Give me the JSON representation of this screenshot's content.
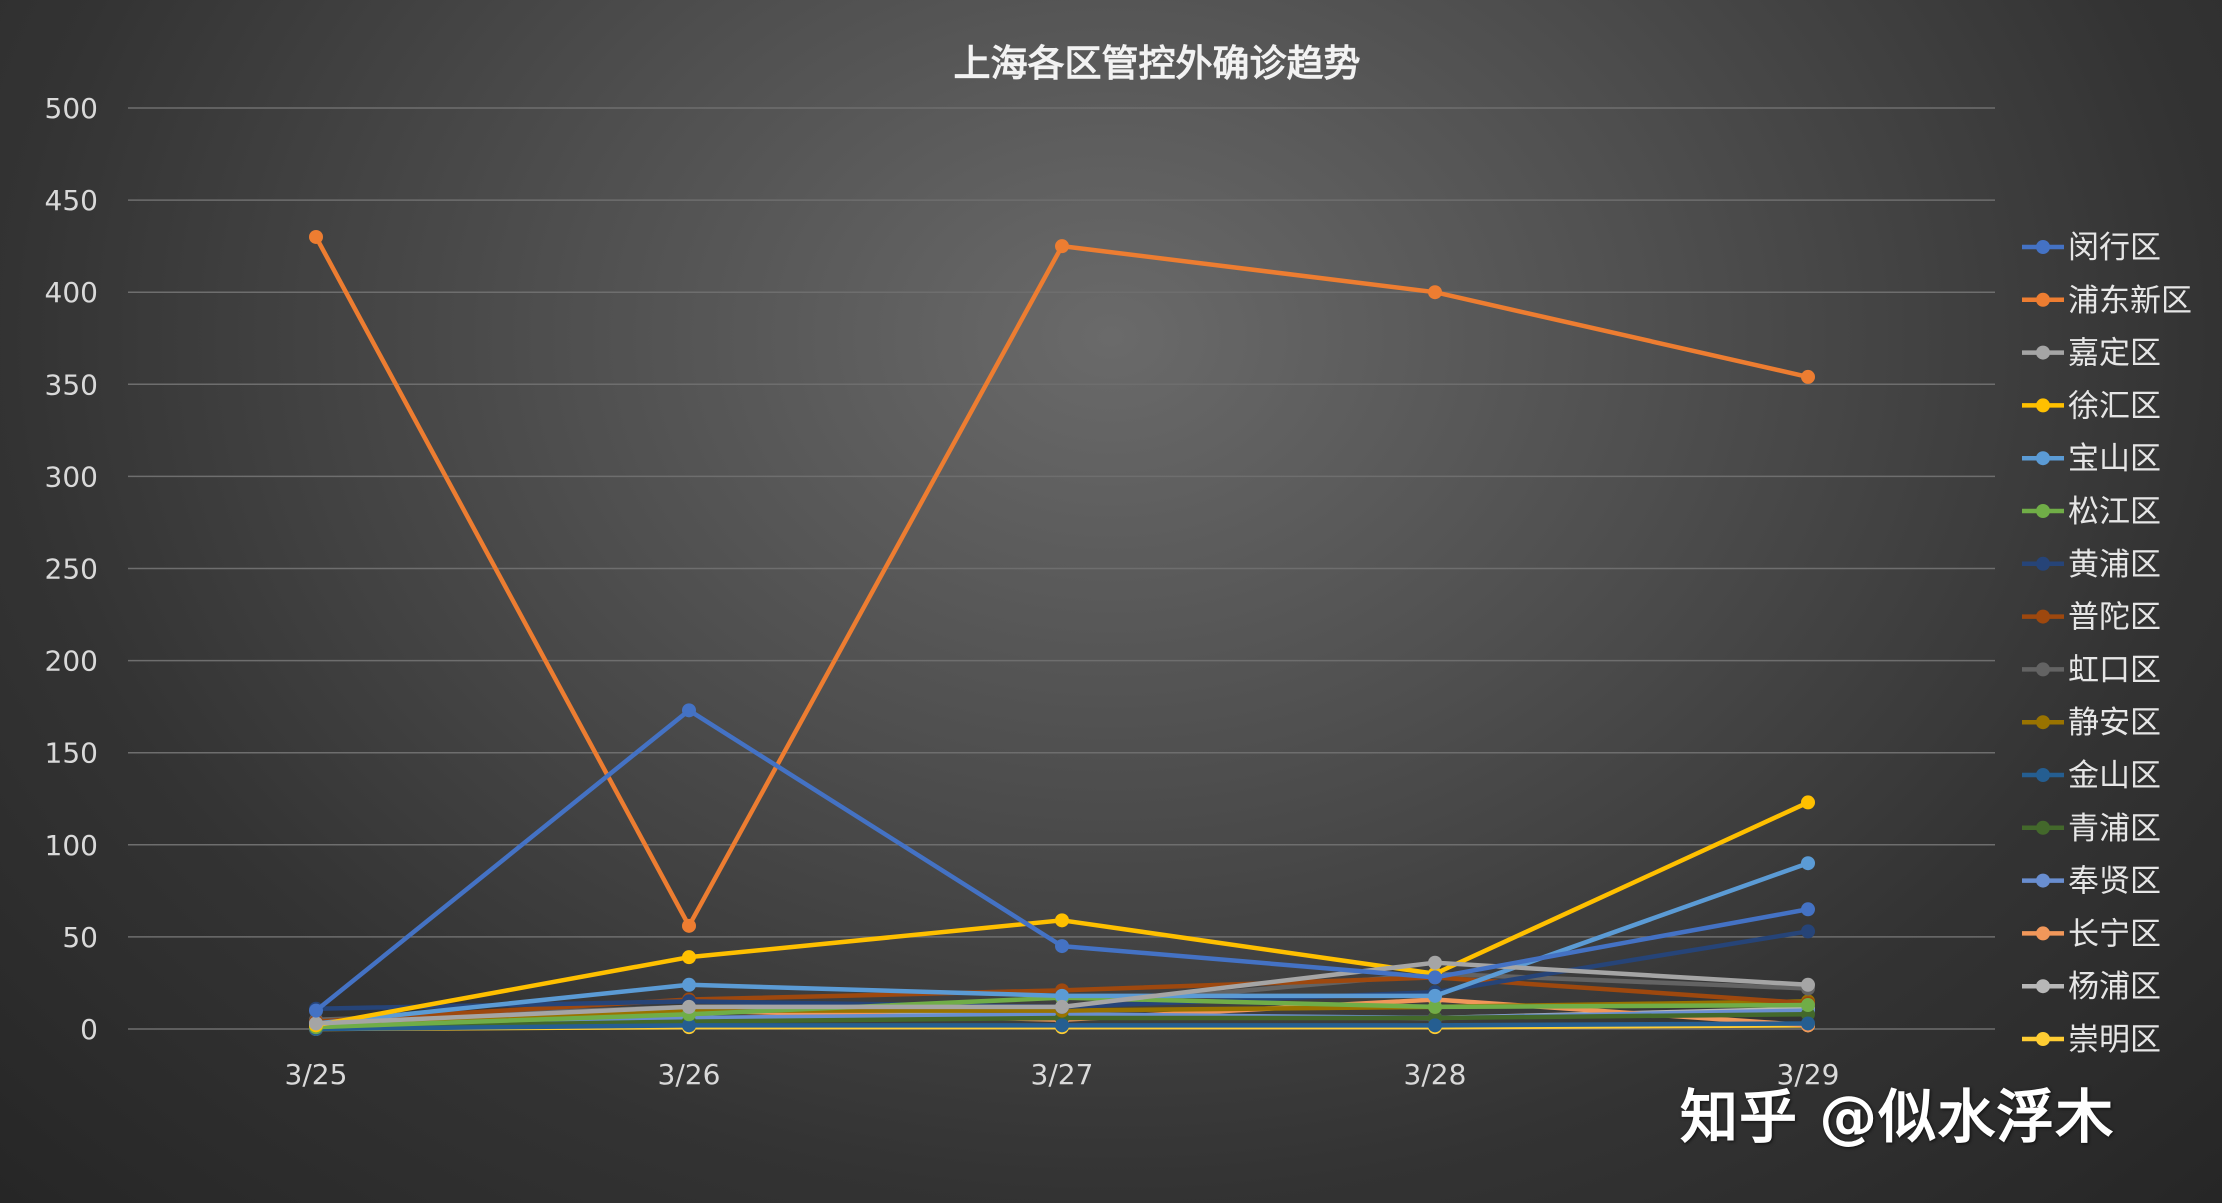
{
  "watermark": "知乎 @似水浮木",
  "chart_data": {
    "type": "line",
    "title": "上海各区管控外确诊趋势",
    "categories": [
      "3/25",
      "3/26",
      "3/27",
      "3/28",
      "3/29"
    ],
    "ylim": [
      0,
      500
    ],
    "yticks": [
      0,
      50,
      100,
      150,
      200,
      250,
      300,
      350,
      400,
      450,
      500
    ],
    "grid": true,
    "legend_position": "right",
    "series": [
      {
        "name": "闵行区",
        "color": "#4472C4",
        "values": [
          10,
          173,
          45,
          28,
          65
        ]
      },
      {
        "name": "浦东新区",
        "color": "#ED7D31",
        "values": [
          430,
          56,
          425,
          400,
          354
        ]
      },
      {
        "name": "嘉定区",
        "color": "#A5A5A5",
        "values": [
          3,
          12,
          12,
          36,
          24
        ]
      },
      {
        "name": "徐汇区",
        "color": "#FFC000",
        "values": [
          2,
          39,
          59,
          30,
          123
        ]
      },
      {
        "name": "宝山区",
        "color": "#5B9BD5",
        "values": [
          3,
          24,
          18,
          18,
          90
        ]
      },
      {
        "name": "松江区",
        "color": "#70AD47",
        "values": [
          1,
          8,
          17,
          12,
          13
        ]
      },
      {
        "name": "黄浦区",
        "color": "#264478",
        "values": [
          11,
          15,
          12,
          20,
          53
        ]
      },
      {
        "name": "普陀区",
        "color": "#9E480E",
        "values": [
          4,
          16,
          21,
          28,
          14
        ]
      },
      {
        "name": "虹口区",
        "color": "#636363",
        "values": [
          5,
          12,
          12,
          30,
          22
        ]
      },
      {
        "name": "静安区",
        "color": "#997300",
        "values": [
          1,
          10,
          10,
          12,
          15
        ]
      },
      {
        "name": "金山区",
        "color": "#255E91",
        "values": [
          0,
          2,
          2,
          2,
          3
        ]
      },
      {
        "name": "青浦区",
        "color": "#43682B",
        "values": [
          1,
          4,
          6,
          6,
          8
        ]
      },
      {
        "name": "奉贤区",
        "color": "#698ED0",
        "values": [
          1,
          6,
          8,
          6,
          10
        ]
      },
      {
        "name": "长宁区",
        "color": "#F1975A",
        "values": [
          3,
          10,
          5,
          16,
          2
        ]
      },
      {
        "name": "杨浦区",
        "color": "#B7B7B7",
        "values": [
          2,
          10,
          7,
          6,
          11
        ]
      },
      {
        "name": "崇明区",
        "color": "#FFCD33",
        "values": [
          0,
          1,
          1,
          1,
          2
        ]
      }
    ]
  }
}
